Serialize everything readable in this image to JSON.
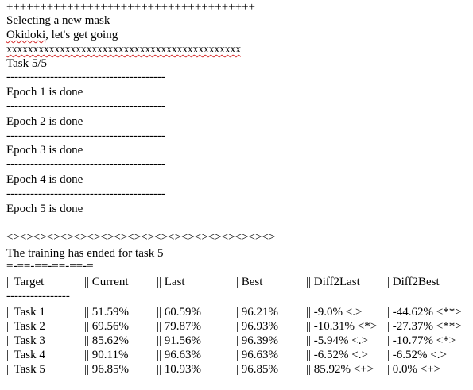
{
  "log": {
    "plus_divider": "+++++++++++++++++++++++++++++++++++++",
    "selecting_mask": "Selecting a new mask",
    "okidoki_word": "Okidoki",
    "okidoki_rest": ", let's get going",
    "x_divider": "xxxxxxxxxxxxxxxxxxxxxxxxxxxxxxxxxxxxxxxxxxxx",
    "task_header": "Task 5/5",
    "dash_divider": "----------------------------------------",
    "epochs": [
      "Epoch 1 is done",
      "Epoch 2 is done",
      "Epoch 3 is done",
      "Epoch 4 is done",
      "Epoch 5 is done"
    ],
    "diamond_divider": "<><><><><><><><><><><><><><><><><><><><>",
    "training_ended": "The training has ended for task 5",
    "eq_divider": "=-==-==-==-==-=",
    "table_divider": "----------------"
  },
  "table": {
    "headers": [
      "|| Target",
      "|| Current",
      "|| Last",
      "|| Best",
      "|| Diff2Last",
      "|| Diff2Best"
    ],
    "rows": [
      [
        "|| Task 1",
        "|| 51.59%",
        "|| 60.59%",
        "|| 96.21%",
        "|| -9.0% <.>",
        "|| -44.62% <**>"
      ],
      [
        "|| Task 2",
        "|| 69.56%",
        "|| 79.87%",
        "|| 96.93%",
        "|| -10.31% <*>",
        "|| -27.37% <**>"
      ],
      [
        "|| Task 3",
        "|| 85.62%",
        "|| 91.56%",
        "|| 96.39%",
        "|| -5.94% <.>",
        "|| -10.77% <*>"
      ],
      [
        "|| Task 4",
        "|| 90.11%",
        "|| 96.63%",
        "|| 96.63%",
        "|| -6.52% <.>",
        "|| -6.52% <.>"
      ],
      [
        "|| Task 5",
        "|| 96.85%",
        "|| 10.93%",
        "|| 96.85%",
        "|| 85.92% <+>",
        "|| 0.0% <+>"
      ]
    ]
  }
}
